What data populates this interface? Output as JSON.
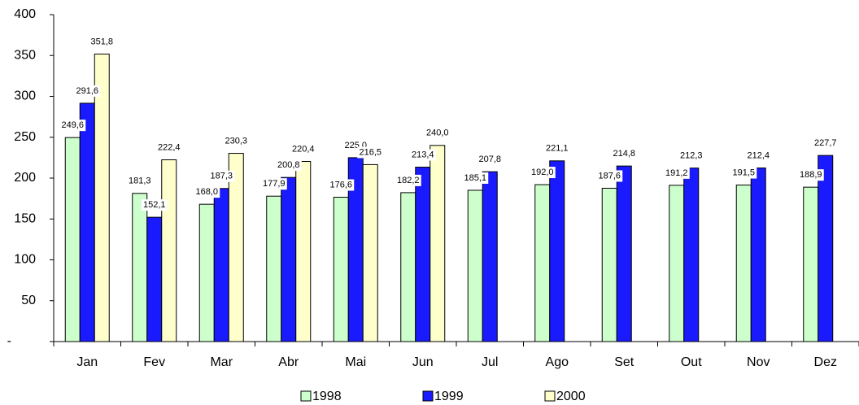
{
  "chart_data": {
    "type": "bar",
    "categories": [
      "Jan",
      "Fev",
      "Mar",
      "Abr",
      "Mai",
      "Jun",
      "Jul",
      "Ago",
      "Set",
      "Out",
      "Nov",
      "Dez"
    ],
    "series": [
      {
        "name": "1998",
        "color": "#ccffcc",
        "values": [
          249.6,
          181.3,
          168.0,
          177.9,
          176.6,
          182.2,
          185.1,
          192.0,
          187.6,
          191.2,
          191.5,
          188.9
        ],
        "value_labels": [
          "249,6",
          "181,3",
          "168,0",
          "177,9",
          "176,6",
          "182,2",
          "185,1",
          "192,0",
          "187,6",
          "191,2",
          "191,5",
          "188,9"
        ]
      },
      {
        "name": "1999",
        "color": "#1a1aff",
        "values": [
          291.6,
          152.1,
          187.3,
          200.8,
          225.0,
          213.4,
          207.8,
          221.1,
          214.8,
          212.3,
          212.4,
          227.7
        ],
        "value_labels": [
          "291,6",
          "152,1",
          "187,3",
          "200,8",
          "225,0",
          "213,4",
          "207,8",
          "221,1",
          "214,8",
          "212,3",
          "212,4",
          "227,7"
        ]
      },
      {
        "name": "2000",
        "color": "#ffffcc",
        "values": [
          351.8,
          222.4,
          230.3,
          220.4,
          216.5,
          240.0,
          null,
          null,
          null,
          null,
          null,
          null
        ],
        "value_labels": [
          "351,8",
          "222,4",
          "230,3",
          "220,4",
          "216,5",
          "240,0",
          null,
          null,
          null,
          null,
          null,
          null
        ]
      }
    ],
    "ylim": [
      0,
      400
    ],
    "yticks": [
      {
        "value": 0,
        "label": "-"
      },
      50,
      100,
      150,
      200,
      250,
      300,
      350,
      400
    ],
    "legend": "bottom"
  }
}
